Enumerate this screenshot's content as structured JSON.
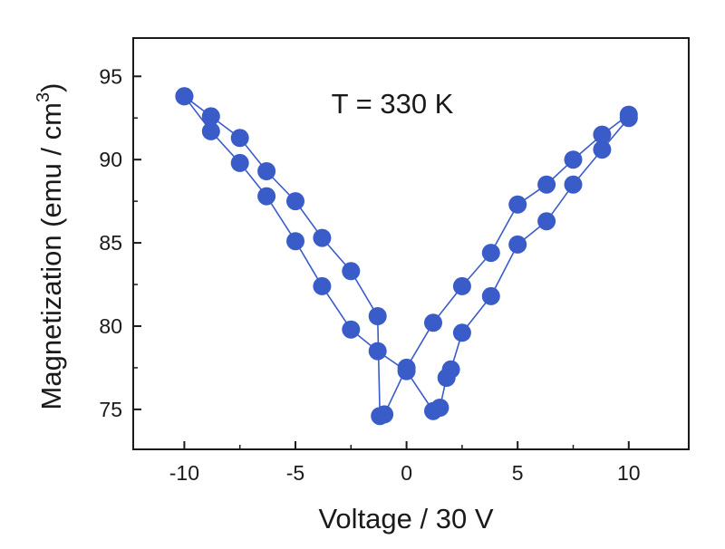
{
  "chart_data": {
    "type": "scatter",
    "title": "",
    "annotation": "T = 330 K",
    "xlabel": "Voltage / 30 V",
    "ylabel_main": "Magnetization (emu / cm",
    "ylabel_sup": "3",
    "ylabel_close": ")",
    "xlim": [
      -12.3,
      12.7
    ],
    "ylim": [
      72.6,
      97.3
    ],
    "xticks": [
      -10,
      -5,
      0,
      5,
      10
    ],
    "xtick_labels": [
      "-10",
      "-5",
      "0",
      "5",
      "10"
    ],
    "yticks": [
      75,
      80,
      85,
      90,
      95
    ],
    "ytick_labels": [
      "75",
      "80",
      "85",
      "90",
      "95"
    ],
    "grid": false,
    "marker_color": "#3a5cc8",
    "line_color": "#3a5cc8",
    "series": [
      {
        "x": [
          -10.0,
          -8.8,
          -7.5,
          -6.3,
          -5.0,
          -3.8,
          -2.5,
          -1.3,
          0.0,
          1.2,
          1.5,
          1.8,
          2.0,
          2.5,
          3.8,
          5.0,
          6.3,
          7.5,
          8.8,
          10.0
        ],
        "y": [
          93.8,
          91.7,
          89.8,
          87.8,
          85.1,
          82.4,
          79.8,
          78.5,
          77.3,
          74.9,
          75.1,
          76.9,
          77.4,
          79.6,
          81.8,
          84.9,
          86.3,
          88.5,
          90.6,
          92.5
        ]
      },
      {
        "x": [
          10.0,
          8.8,
          7.5,
          6.3,
          5.0,
          3.8,
          2.5,
          1.2,
          0.0,
          -1.0,
          -1.2,
          -1.3,
          -2.5,
          -3.8,
          -5.0,
          -6.3,
          -7.5,
          -8.8,
          -10.0
        ],
        "y": [
          92.7,
          91.5,
          90.0,
          88.5,
          87.3,
          84.4,
          82.4,
          80.2,
          77.5,
          74.7,
          74.6,
          80.6,
          83.3,
          85.3,
          87.5,
          89.3,
          91.3,
          92.6,
          93.8
        ]
      }
    ]
  }
}
